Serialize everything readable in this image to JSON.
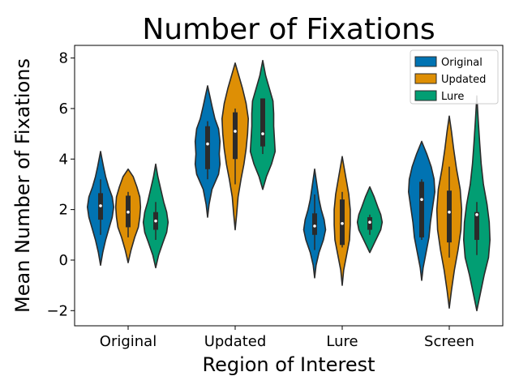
{
  "chart_data": {
    "type": "violin",
    "title": "Number of Fixations",
    "xlabel": "Region of Interest",
    "ylabel": "Mean Number of Fixations",
    "categories": [
      "Original",
      "Updated",
      "Lure",
      "Screen"
    ],
    "ylim": [
      -2.6,
      8.5
    ],
    "yticks": [
      -2,
      0,
      2,
      4,
      6,
      8
    ],
    "ytick_labels": [
      "−2",
      "0",
      "2",
      "4",
      "6",
      "8"
    ],
    "grid": false,
    "legend_position": "top-right",
    "series": [
      {
        "name": "Original",
        "color": "#0173b2",
        "violins": [
          {
            "min": -0.2,
            "max": 4.3,
            "q1": 1.6,
            "median": 2.15,
            "q3": 2.65,
            "whisker_low": 1.0,
            "whisker_high": 3.2,
            "profile": [
              [
                -0.2,
                0.0
              ],
              [
                0.3,
                0.15
              ],
              [
                0.8,
                0.35
              ],
              [
                1.3,
                0.6
              ],
              [
                1.7,
                0.8
              ],
              [
                2.1,
                0.9
              ],
              [
                2.5,
                0.8
              ],
              [
                2.9,
                0.55
              ],
              [
                3.3,
                0.35
              ],
              [
                3.7,
                0.2
              ],
              [
                4.0,
                0.1
              ],
              [
                4.3,
                0.0
              ]
            ]
          },
          {
            "min": 1.7,
            "max": 6.9,
            "q1": 3.6,
            "median": 4.6,
            "q3": 5.3,
            "whisker_low": 3.2,
            "whisker_high": 5.5,
            "profile": [
              [
                1.7,
                0.0
              ],
              [
                2.2,
                0.1
              ],
              [
                2.8,
                0.3
              ],
              [
                3.4,
                0.75
              ],
              [
                3.8,
                0.85
              ],
              [
                4.2,
                0.8
              ],
              [
                4.7,
                0.85
              ],
              [
                5.2,
                0.75
              ],
              [
                5.6,
                0.5
              ],
              [
                6.1,
                0.3
              ],
              [
                6.5,
                0.15
              ],
              [
                6.9,
                0.0
              ]
            ]
          },
          {
            "min": -0.7,
            "max": 3.6,
            "q1": 1.0,
            "median": 1.35,
            "q3": 1.85,
            "whisker_low": 0.4,
            "whisker_high": 2.6,
            "profile": [
              [
                -0.7,
                0.0
              ],
              [
                -0.2,
                0.1
              ],
              [
                0.3,
                0.3
              ],
              [
                0.8,
                0.6
              ],
              [
                1.2,
                0.75
              ],
              [
                1.6,
                0.65
              ],
              [
                2.0,
                0.45
              ],
              [
                2.4,
                0.3
              ],
              [
                2.8,
                0.2
              ],
              [
                3.2,
                0.1
              ],
              [
                3.6,
                0.0
              ]
            ]
          },
          {
            "min": -0.8,
            "max": 4.7,
            "q1": 0.9,
            "median": 2.4,
            "q3": 3.1,
            "whisker_low": 0.8,
            "whisker_high": 3.2,
            "profile": [
              [
                -0.8,
                0.0
              ],
              [
                -0.3,
                0.1
              ],
              [
                0.3,
                0.3
              ],
              [
                0.9,
                0.5
              ],
              [
                1.5,
                0.6
              ],
              [
                2.1,
                0.75
              ],
              [
                2.7,
                0.9
              ],
              [
                3.2,
                0.85
              ],
              [
                3.7,
                0.65
              ],
              [
                4.2,
                0.35
              ],
              [
                4.7,
                0.0
              ]
            ]
          }
        ]
      },
      {
        "name": "Updated",
        "color": "#de8f05",
        "violins": [
          {
            "min": -0.1,
            "max": 3.6,
            "q1": 1.3,
            "median": 1.9,
            "q3": 2.55,
            "whisker_low": 0.9,
            "whisker_high": 2.7,
            "profile": [
              [
                -0.1,
                0.0
              ],
              [
                0.4,
                0.2
              ],
              [
                0.9,
                0.45
              ],
              [
                1.3,
                0.7
              ],
              [
                1.7,
                0.8
              ],
              [
                2.1,
                0.85
              ],
              [
                2.5,
                0.8
              ],
              [
                2.9,
                0.6
              ],
              [
                3.3,
                0.35
              ],
              [
                3.6,
                0.0
              ]
            ]
          },
          {
            "min": 1.2,
            "max": 7.8,
            "q1": 4.0,
            "median": 5.1,
            "q3": 5.85,
            "whisker_low": 3.0,
            "whisker_high": 6.0,
            "profile": [
              [
                1.2,
                0.0
              ],
              [
                1.8,
                0.1
              ],
              [
                2.5,
                0.2
              ],
              [
                3.2,
                0.4
              ],
              [
                3.8,
                0.6
              ],
              [
                4.4,
                0.75
              ],
              [
                5.0,
                0.85
              ],
              [
                5.6,
                0.9
              ],
              [
                6.2,
                0.75
              ],
              [
                6.8,
                0.5
              ],
              [
                7.3,
                0.25
              ],
              [
                7.8,
                0.0
              ]
            ]
          },
          {
            "min": -1.0,
            "max": 4.1,
            "q1": 0.6,
            "median": 1.45,
            "q3": 2.4,
            "whisker_low": 0.5,
            "whisker_high": 2.7,
            "profile": [
              [
                -1.0,
                0.0
              ],
              [
                -0.4,
                0.1
              ],
              [
                0.2,
                0.3
              ],
              [
                0.8,
                0.5
              ],
              [
                1.4,
                0.55
              ],
              [
                2.0,
                0.55
              ],
              [
                2.6,
                0.45
              ],
              [
                3.1,
                0.3
              ],
              [
                3.6,
                0.15
              ],
              [
                4.1,
                0.0
              ]
            ]
          },
          {
            "min": -1.9,
            "max": 5.7,
            "q1": 0.7,
            "median": 1.9,
            "q3": 2.75,
            "whisker_low": 0.1,
            "whisker_high": 3.7,
            "profile": [
              [
                -1.9,
                0.0
              ],
              [
                -1.2,
                0.15
              ],
              [
                -0.4,
                0.35
              ],
              [
                0.4,
                0.6
              ],
              [
                1.2,
                0.8
              ],
              [
                2.0,
                0.85
              ],
              [
                2.8,
                0.75
              ],
              [
                3.6,
                0.5
              ],
              [
                4.4,
                0.3
              ],
              [
                5.1,
                0.15
              ],
              [
                5.7,
                0.0
              ]
            ]
          }
        ]
      },
      {
        "name": "Lure",
        "color": "#029e73",
        "violins": [
          {
            "min": -0.3,
            "max": 3.8,
            "q1": 1.2,
            "median": 1.55,
            "q3": 1.9,
            "whisker_low": 0.8,
            "whisker_high": 2.3,
            "profile": [
              [
                -0.3,
                0.0
              ],
              [
                0.2,
                0.2
              ],
              [
                0.7,
                0.5
              ],
              [
                1.1,
                0.75
              ],
              [
                1.5,
                0.85
              ],
              [
                1.9,
                0.75
              ],
              [
                2.3,
                0.55
              ],
              [
                2.8,
                0.35
              ],
              [
                3.3,
                0.15
              ],
              [
                3.8,
                0.0
              ]
            ]
          },
          {
            "min": 2.8,
            "max": 7.9,
            "q1": 4.5,
            "median": 5.0,
            "q3": 6.4,
            "whisker_low": 4.2,
            "whisker_high": 6.4,
            "profile": [
              [
                2.8,
                0.0
              ],
              [
                3.3,
                0.25
              ],
              [
                3.8,
                0.6
              ],
              [
                4.3,
                0.85
              ],
              [
                4.8,
                0.8
              ],
              [
                5.3,
                0.75
              ],
              [
                5.8,
                0.75
              ],
              [
                6.3,
                0.7
              ],
              [
                6.8,
                0.45
              ],
              [
                7.3,
                0.2
              ],
              [
                7.9,
                0.0
              ]
            ]
          },
          {
            "min": 0.3,
            "max": 2.9,
            "q1": 1.2,
            "median": 1.5,
            "q3": 1.7,
            "whisker_low": 1.0,
            "whisker_high": 1.8,
            "profile": [
              [
                0.3,
                0.0
              ],
              [
                0.6,
                0.25
              ],
              [
                0.9,
                0.5
              ],
              [
                1.2,
                0.75
              ],
              [
                1.5,
                0.85
              ],
              [
                1.8,
                0.75
              ],
              [
                2.1,
                0.55
              ],
              [
                2.5,
                0.3
              ],
              [
                2.9,
                0.0
              ]
            ]
          },
          {
            "min": -2.0,
            "max": 6.5,
            "q1": 0.8,
            "median": 1.8,
            "q3": 1.9,
            "whisker_low": 0.2,
            "whisker_high": 2.3,
            "profile": [
              [
                -2.0,
                0.0
              ],
              [
                -1.3,
                0.25
              ],
              [
                -0.6,
                0.5
              ],
              [
                0.1,
                0.8
              ],
              [
                0.8,
                0.9
              ],
              [
                1.5,
                0.85
              ],
              [
                2.2,
                0.7
              ],
              [
                3.0,
                0.45
              ],
              [
                3.8,
                0.3
              ],
              [
                4.6,
                0.2
              ],
              [
                5.5,
                0.1
              ],
              [
                6.5,
                0.0
              ]
            ]
          }
        ]
      }
    ]
  }
}
